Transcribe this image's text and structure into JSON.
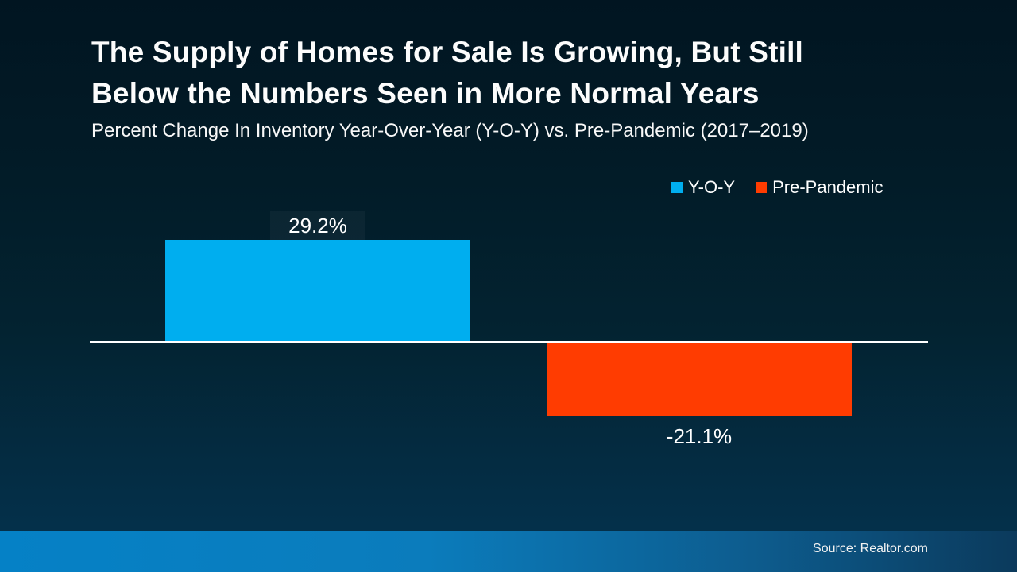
{
  "slide": {
    "title_line1": "The Supply of Homes for Sale Is Growing, But Still",
    "title_line2": "Below the Numbers Seen in More Normal Years",
    "subtitle": "Percent Change In Inventory Year-Over-Year (Y-O-Y) vs. Pre-Pandemic (2017–2019)",
    "source": "Source: Realtor.com"
  },
  "colors": {
    "yoy_bar": "#00AEEF",
    "pre_pandemic_bar": "#FF3C01",
    "axis_line": "#FFFFFF",
    "background_top": "#011521",
    "background_bottom": "#05324D",
    "footer_left": "#0581C6",
    "footer_right": "#0B3A5C",
    "text": "#FFFFFF"
  },
  "legend": {
    "items": [
      {
        "label": "Y-O-Y",
        "color": "#00AEEF"
      },
      {
        "label": "Pre-Pandemic",
        "color": "#FF3C01"
      }
    ]
  },
  "chart_data": {
    "type": "bar",
    "title": "The Supply of Homes for Sale Is Growing, But Still Below the Numbers Seen in More Normal Years",
    "subtitle": "Percent Change In Inventory Year-Over-Year (Y-O-Y) vs. Pre-Pandemic (2017–2019)",
    "categories": [
      "Y-O-Y",
      "Pre-Pandemic"
    ],
    "values": [
      29.2,
      -21.1
    ],
    "data_labels": [
      "29.2%",
      "-21.1%"
    ],
    "series_colors": [
      "#00AEEF",
      "#FF3C01"
    ],
    "ylabel": "",
    "xlabel": "",
    "ylim": [
      -25,
      35
    ],
    "baseline": 0,
    "grid": false,
    "legend_position": "top-right",
    "source": "Source: Realtor.com"
  }
}
